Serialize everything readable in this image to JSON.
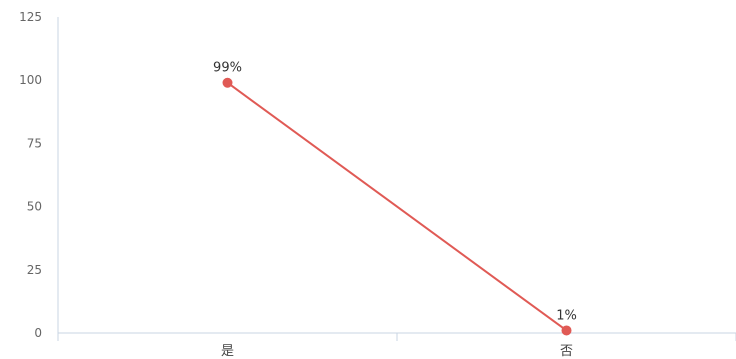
{
  "chart_data": {
    "type": "line",
    "categories": [
      "是",
      "否"
    ],
    "series": [
      {
        "values": [
          99,
          1
        ],
        "labels": [
          "99%",
          "1%"
        ],
        "color": "#e05a55"
      }
    ],
    "ylim": [
      0,
      125
    ],
    "yticks": [
      0,
      25,
      50,
      75,
      100,
      125
    ],
    "grid": false,
    "axis_color": "#c8d4e3"
  }
}
